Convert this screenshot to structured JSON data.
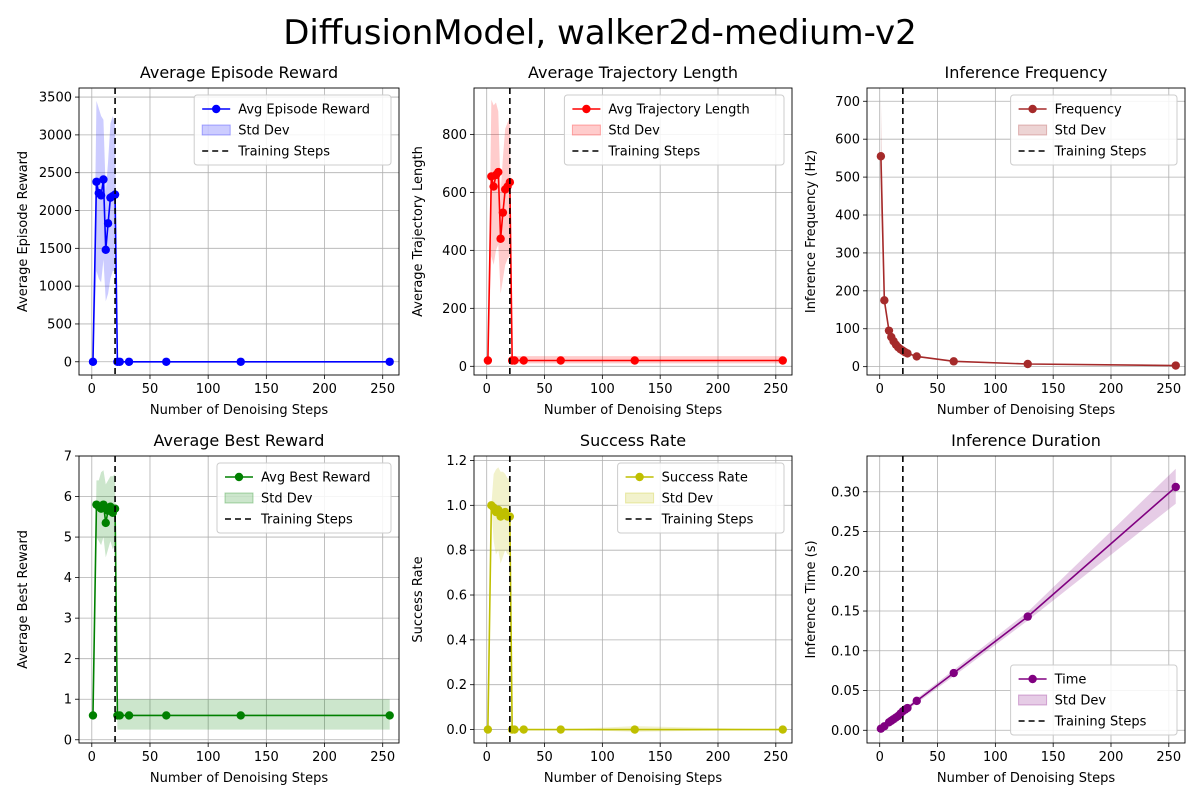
{
  "figure": {
    "title": "DiffusionModel, walker2d-medium-v2"
  },
  "chart_data": [
    {
      "type": "line",
      "title": "Average Episode Reward",
      "xlabel": "Number of Denoising Steps",
      "ylabel": "Average Episode Reward",
      "xlim": [
        -11,
        264
      ],
      "ylim": [
        -175,
        3620
      ],
      "xticks": [
        0,
        50,
        100,
        150,
        200,
        250
      ],
      "yticks": [
        0,
        500,
        1000,
        1500,
        2000,
        2500,
        3000,
        3500
      ],
      "grid": true,
      "legend_position": "upper right",
      "color": "#0000ff",
      "training_steps": 20,
      "series": [
        {
          "name": "Avg Episode Reward",
          "x": [
            1,
            4,
            6,
            8,
            10,
            12,
            14,
            16,
            18,
            20,
            22,
            24,
            32,
            64,
            128,
            256
          ],
          "y": [
            0,
            2380,
            2230,
            2200,
            2410,
            1480,
            1830,
            2170,
            2190,
            2210,
            0,
            0,
            0,
            0,
            0,
            0
          ],
          "lower": [
            0,
            1200,
            1100,
            1050,
            1350,
            800,
            900,
            1100,
            1200,
            1200,
            0,
            0,
            0,
            0,
            0,
            0
          ],
          "upper": [
            0,
            3450,
            3350,
            3250,
            3200,
            2250,
            2650,
            3150,
            3250,
            3150,
            0,
            0,
            0,
            0,
            0,
            0
          ]
        }
      ],
      "legend": [
        "Avg Episode Reward",
        "Std Dev",
        "Training Steps"
      ]
    },
    {
      "type": "line",
      "title": "Average Trajectory Length",
      "xlabel": "Number of Denoising Steps",
      "ylabel": "Average Trajectory Length",
      "xlim": [
        -11,
        264
      ],
      "ylim": [
        -30,
        960
      ],
      "xticks": [
        0,
        50,
        100,
        150,
        200,
        250
      ],
      "yticks": [
        0,
        200,
        400,
        600,
        800
      ],
      "grid": true,
      "legend_position": "upper right",
      "color": "#ff0000",
      "training_steps": 20,
      "series": [
        {
          "name": "Avg Trajectory Length",
          "x": [
            1,
            4,
            6,
            8,
            10,
            12,
            14,
            16,
            18,
            20,
            22,
            24,
            32,
            64,
            128,
            256
          ],
          "y": [
            20,
            655,
            620,
            660,
            670,
            440,
            530,
            610,
            620,
            635,
            20,
            20,
            20,
            20,
            20,
            20
          ],
          "lower": [
            20,
            380,
            350,
            400,
            420,
            250,
            300,
            350,
            370,
            380,
            10,
            10,
            10,
            10,
            10,
            10
          ],
          "upper": [
            20,
            920,
            900,
            910,
            880,
            600,
            720,
            820,
            840,
            860,
            35,
            35,
            35,
            35,
            35,
            35
          ]
        }
      ],
      "legend": [
        "Avg Trajectory Length",
        "Std Dev",
        "Training Steps"
      ]
    },
    {
      "type": "line",
      "title": "Inference Frequency",
      "xlabel": "Number of Denoising Steps",
      "ylabel": "Inference Frequency (Hz)",
      "xlim": [
        -11,
        264
      ],
      "ylim": [
        -22,
        735
      ],
      "xticks": [
        0,
        50,
        100,
        150,
        200,
        250
      ],
      "yticks": [
        0,
        100,
        200,
        300,
        400,
        500,
        600,
        700
      ],
      "grid": true,
      "legend_position": "upper right",
      "color": "#a52a2a",
      "training_steps": 20,
      "series": [
        {
          "name": "Frequency",
          "x": [
            1,
            4,
            8,
            10,
            12,
            14,
            16,
            18,
            20,
            22,
            24,
            32,
            64,
            128,
            256
          ],
          "y": [
            555,
            175,
            95,
            78,
            67,
            58,
            51,
            46,
            42,
            38,
            35,
            27,
            14,
            7,
            3
          ],
          "lower": [
            420,
            160,
            90,
            74,
            64,
            55,
            48,
            44,
            40,
            36,
            33,
            25,
            13,
            6,
            2
          ],
          "upper": [
            710,
            190,
            100,
            82,
            70,
            61,
            54,
            48,
            44,
            40,
            37,
            29,
            15,
            8,
            4
          ]
        }
      ],
      "legend": [
        "Frequency",
        "Std Dev",
        "Training Steps"
      ]
    },
    {
      "type": "line",
      "title": "Average Best Reward",
      "xlabel": "Number of Denoising Steps",
      "ylabel": "Average Best Reward",
      "xlim": [
        -11,
        264
      ],
      "ylim": [
        -0.08,
        7.0
      ],
      "xticks": [
        0,
        50,
        100,
        150,
        200,
        250
      ],
      "yticks": [
        0,
        1,
        2,
        3,
        4,
        5,
        6,
        7
      ],
      "grid": true,
      "legend_position": "upper right",
      "color": "#008000",
      "training_steps": 20,
      "series": [
        {
          "name": "Avg Best Reward",
          "x": [
            1,
            4,
            6,
            8,
            10,
            12,
            14,
            16,
            18,
            20,
            22,
            24,
            32,
            64,
            128,
            256
          ],
          "y": [
            0.6,
            5.8,
            5.75,
            5.7,
            5.8,
            5.35,
            5.65,
            5.75,
            5.6,
            5.7,
            0.6,
            0.6,
            0.6,
            0.6,
            0.6,
            0.6
          ],
          "lower": [
            0.6,
            5.0,
            4.9,
            4.8,
            5.0,
            4.5,
            4.7,
            4.9,
            4.7,
            4.8,
            0.25,
            0.25,
            0.25,
            0.25,
            0.25,
            0.25
          ],
          "upper": [
            0.6,
            6.4,
            6.4,
            6.6,
            6.65,
            6.3,
            6.4,
            6.5,
            6.5,
            6.55,
            1.0,
            1.0,
            1.0,
            1.0,
            1.0,
            1.0
          ]
        }
      ],
      "legend": [
        "Avg Best Reward",
        "Std Dev",
        "Training Steps"
      ]
    },
    {
      "type": "line",
      "title": "Success Rate",
      "xlabel": "Number of Denoising Steps",
      "ylabel": "Success Rate",
      "xlim": [
        -11,
        264
      ],
      "ylim": [
        -0.06,
        1.22
      ],
      "xticks": [
        0,
        50,
        100,
        150,
        200,
        250
      ],
      "yticks": [
        0.0,
        0.2,
        0.4,
        0.6,
        0.8,
        1.0,
        1.2
      ],
      "ytick_labels": [
        "0.0",
        "0.2",
        "0.4",
        "0.6",
        "0.8",
        "1.0",
        "1.2"
      ],
      "grid": true,
      "legend_position": "upper right",
      "color": "#bfbf00",
      "training_steps": 20,
      "series": [
        {
          "name": "Success Rate",
          "x": [
            1,
            4,
            6,
            8,
            10,
            12,
            14,
            16,
            18,
            20,
            22,
            24,
            32,
            64,
            128,
            256
          ],
          "y": [
            0.0,
            1.0,
            0.99,
            0.97,
            0.98,
            0.95,
            0.96,
            0.97,
            0.95,
            0.95,
            0.0,
            0.0,
            0.0,
            0.0,
            0.0,
            0.0
          ],
          "lower": [
            0.0,
            1.0,
            0.84,
            0.78,
            0.8,
            0.74,
            0.77,
            0.8,
            0.78,
            0.78,
            0.0,
            0.0,
            0.0,
            0.0,
            -0.01,
            0.0
          ],
          "upper": [
            0.0,
            1.0,
            1.14,
            1.16,
            1.17,
            1.15,
            1.15,
            1.14,
            1.12,
            1.12,
            0.0,
            0.0,
            0.0,
            0.0,
            0.015,
            0.0
          ]
        }
      ],
      "legend": [
        "Success Rate",
        "Std Dev",
        "Training Steps"
      ]
    },
    {
      "type": "line",
      "title": "Inference Duration",
      "xlabel": "Number of Denoising Steps",
      "ylabel": "Inference Time (s)",
      "xlim": [
        -11,
        264
      ],
      "ylim": [
        -0.016,
        0.345
      ],
      "xticks": [
        0,
        50,
        100,
        150,
        200,
        250
      ],
      "yticks": [
        0.0,
        0.05,
        0.1,
        0.15,
        0.2,
        0.25,
        0.3
      ],
      "ytick_labels": [
        "0.00",
        "0.05",
        "0.10",
        "0.15",
        "0.20",
        "0.25",
        "0.30"
      ],
      "grid": true,
      "legend_position": "lower right",
      "color": "#800080",
      "training_steps": 20,
      "series": [
        {
          "name": "Time",
          "x": [
            1,
            4,
            8,
            10,
            12,
            14,
            16,
            18,
            20,
            22,
            24,
            32,
            64,
            128,
            256
          ],
          "y": [
            0.002,
            0.005,
            0.01,
            0.012,
            0.014,
            0.016,
            0.018,
            0.021,
            0.024,
            0.026,
            0.028,
            0.037,
            0.072,
            0.143,
            0.306
          ],
          "lower": [
            0.001,
            0.004,
            0.009,
            0.011,
            0.013,
            0.015,
            0.017,
            0.019,
            0.022,
            0.024,
            0.026,
            0.034,
            0.068,
            0.138,
            0.285
          ],
          "upper": [
            0.003,
            0.006,
            0.011,
            0.013,
            0.015,
            0.017,
            0.019,
            0.023,
            0.026,
            0.028,
            0.03,
            0.04,
            0.076,
            0.149,
            0.329
          ]
        }
      ],
      "legend": [
        "Time",
        "Std Dev",
        "Training Steps"
      ]
    }
  ]
}
